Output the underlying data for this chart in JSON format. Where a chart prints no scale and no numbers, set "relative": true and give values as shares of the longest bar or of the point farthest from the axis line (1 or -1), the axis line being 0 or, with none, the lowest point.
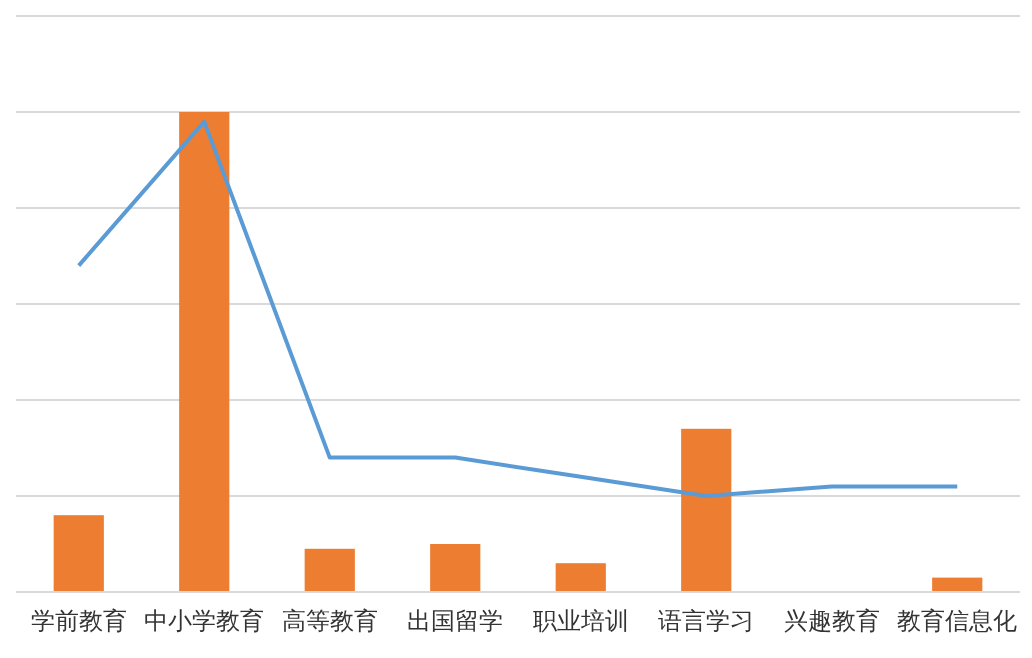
{
  "chart_data": {
    "type": "bar",
    "relative": true,
    "grid": "y",
    "categories": [
      "学前教育",
      "中小学教育",
      "高等教育",
      "出国留学",
      "职业培训",
      "语言学习",
      "兴趣教育",
      "教育信息化"
    ],
    "series": [
      {
        "color": "#ed7d31",
        "values": [
          0.16,
          1,
          0.09,
          0.1,
          0.06,
          0.34,
          0,
          0.03
        ]
      },
      {
        "type": "line",
        "color": "#5b9bd5",
        "values": [
          0.68,
          0.98,
          0.28,
          0.28,
          0.24,
          0.2,
          0.22,
          0.22
        ]
      }
    ]
  }
}
